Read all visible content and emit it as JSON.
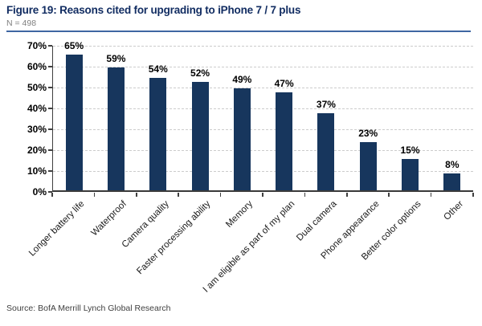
{
  "header": {
    "title": "Figure 19: Reasons cited for upgrading to iPhone 7 / 7 plus",
    "sample": "N = 498"
  },
  "footer": {
    "source": "Source: BofA Merrill Lynch Global Research"
  },
  "colors": {
    "bar": "#17365d",
    "title_text": "#122d62",
    "header_rule": "#3f67a2",
    "gridline": "#cccccc",
    "axis": "#404040",
    "subtitle_text": "#7f7f7f",
    "source_text": "#404040",
    "label_text": "#000000"
  },
  "chart_data": {
    "type": "bar",
    "title": "Figure 19: Reasons cited for upgrading to iPhone 7 / 7 plus",
    "sample_size": "N = 498",
    "categories": [
      "Longer battery life",
      "Waterproof",
      "Camera quality",
      "Faster processing ability",
      "Memory",
      "I am eligible as part of my plan",
      "Dual camera",
      "Phone appearance",
      "Better color options",
      "Other"
    ],
    "values": [
      65,
      59,
      54,
      52,
      49,
      47,
      37,
      23,
      15,
      8
    ],
    "value_labels": [
      "65%",
      "59%",
      "54%",
      "52%",
      "49%",
      "47%",
      "37%",
      "23%",
      "15%",
      "8%"
    ],
    "xlabel": "",
    "ylabel": "",
    "ylim": [
      0,
      70
    ],
    "ytick_values": [
      0,
      10,
      20,
      30,
      40,
      50,
      60,
      70
    ],
    "ytick_labels": [
      "0%",
      "10%",
      "20%",
      "30%",
      "40%",
      "50%",
      "60%",
      "70%"
    ],
    "grid": "horizontal-dashed",
    "legend": "none",
    "bar_color": "#17365d",
    "x_label_rotation_deg": -45
  }
}
